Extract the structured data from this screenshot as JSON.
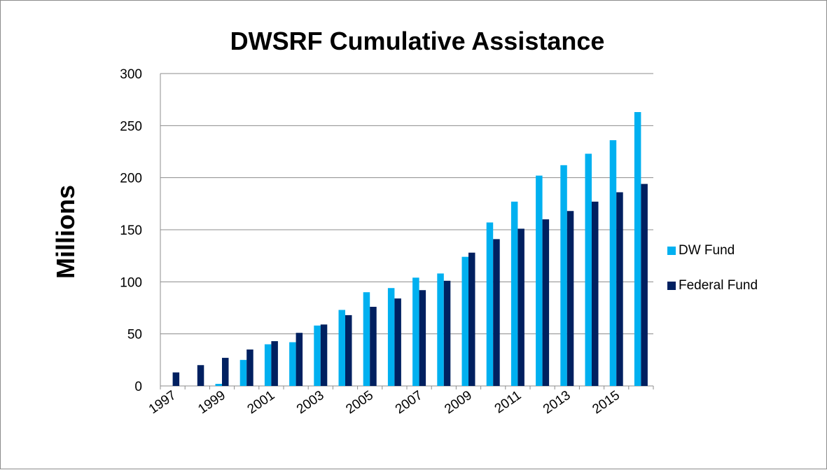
{
  "chart_data": {
    "type": "bar",
    "title": "DWSRF Cumulative Assistance",
    "ylabel": "Millions",
    "xlabel": "",
    "categories": [
      "1997",
      "1998",
      "1999",
      "2000",
      "2001",
      "2002",
      "2003",
      "2004",
      "2005",
      "2006",
      "2007",
      "2008",
      "2009",
      "2010",
      "2011",
      "2012",
      "2013",
      "2014",
      "2015",
      "2016"
    ],
    "x_tick_labels": [
      "1997",
      "1999",
      "2001",
      "2003",
      "2005",
      "2007",
      "2009",
      "2011",
      "2013",
      "2015"
    ],
    "y_ticks": [
      "0",
      "50",
      "100",
      "150",
      "200",
      "250",
      "300"
    ],
    "ylim": [
      0,
      300
    ],
    "grid": true,
    "legend_position": "right",
    "series": [
      {
        "name": "DW Fund",
        "color": "#00b0f0",
        "values": [
          0,
          0,
          2,
          25,
          40,
          42,
          58,
          73,
          90,
          94,
          104,
          108,
          124,
          157,
          177,
          202,
          212,
          223,
          236,
          263
        ]
      },
      {
        "name": "Federal Fund",
        "color": "#002060",
        "values": [
          13,
          20,
          27,
          35,
          43,
          51,
          59,
          68,
          76,
          84,
          92,
          101,
          128,
          141,
          151,
          160,
          168,
          177,
          186,
          194
        ]
      }
    ]
  }
}
